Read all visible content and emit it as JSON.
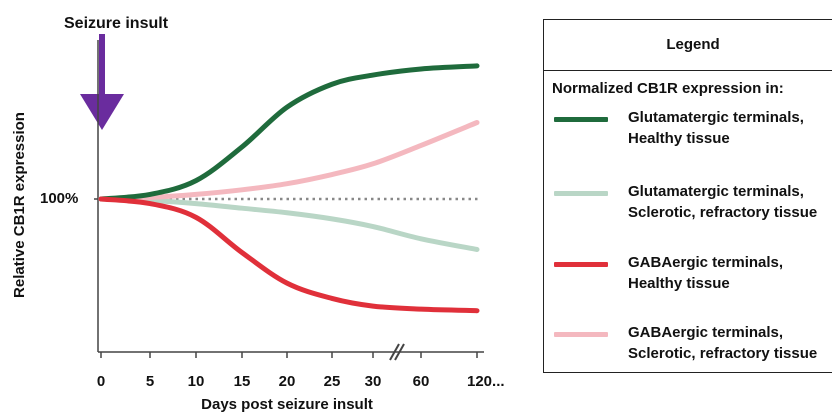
{
  "chart_data": {
    "type": "line",
    "title": "",
    "xlabel": "Days post seizure insult",
    "ylabel": "Relative CB1R expression",
    "x_ticks": [
      "0",
      "5",
      "10",
      "15",
      "20",
      "25",
      "30",
      "60",
      "120..."
    ],
    "x_axis_break": "between 30 and 60",
    "y_ticks": [
      "100%"
    ],
    "reference_line": {
      "label": "100%",
      "value": 1.0,
      "style": "dotted",
      "color": "#888888"
    },
    "annotation": {
      "text": "Seizure insult",
      "x": 0,
      "arrow_color": "#6a2c9e"
    },
    "legend_title": "Legend",
    "legend_subtitle": "Normalized CB1R expression in:",
    "legend_position": "right",
    "series": [
      {
        "name": "Glutamatergic terminals, Healthy tissue",
        "label_lines": [
          "Glutamatergic terminals,",
          "Healthy tissue"
        ],
        "color": "#1f6b3c",
        "x": [
          0,
          5,
          10,
          15,
          20,
          25,
          30,
          60,
          120
        ],
        "y": [
          1.0,
          1.03,
          1.12,
          1.34,
          1.6,
          1.75,
          1.81,
          1.85,
          1.87
        ]
      },
      {
        "name": "Glutamatergic terminals, Sclerotic, refractory tissue",
        "label_lines": [
          "Glutamatergic terminals,",
          "Sclerotic, refractory tissue"
        ],
        "color": "#b9d6c6",
        "x": [
          0,
          5,
          10,
          15,
          20,
          25,
          30,
          60,
          120
        ],
        "y": [
          1.0,
          0.99,
          0.97,
          0.94,
          0.91,
          0.87,
          0.82,
          0.74,
          0.67
        ]
      },
      {
        "name": "GABAergic terminals, Healthy tissue",
        "label_lines": [
          "GABAergic terminals,",
          "Healthy tissue"
        ],
        "color": "#e0303a",
        "x": [
          0,
          5,
          10,
          15,
          20,
          25,
          30,
          60,
          120
        ],
        "y": [
          1.0,
          0.97,
          0.88,
          0.65,
          0.45,
          0.35,
          0.3,
          0.28,
          0.27
        ]
      },
      {
        "name": "GABAergic terminals, Sclerotic, refractory tissue",
        "label_lines": [
          "GABAergic terminals,",
          "Sclerotic, refractory tissue"
        ],
        "color": "#f4b8bf",
        "x": [
          0,
          5,
          10,
          15,
          20,
          25,
          30,
          60,
          120
        ],
        "y": [
          1.0,
          1.01,
          1.03,
          1.06,
          1.1,
          1.16,
          1.23,
          1.35,
          1.5
        ]
      }
    ]
  }
}
